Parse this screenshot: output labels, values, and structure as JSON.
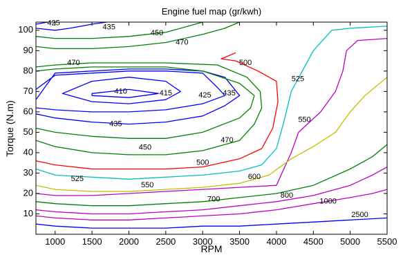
{
  "chart_data": {
    "type": "contour",
    "title": "Engine fuel map (gr/kwh)",
    "xlabel": "RPM",
    "ylabel": "Torque (N.m)",
    "xlim": [
      740,
      5500
    ],
    "ylim": [
      0,
      104
    ],
    "xticks": [
      1000,
      1500,
      2000,
      2500,
      3000,
      3500,
      4000,
      4500,
      5000,
      5500
    ],
    "yticks": [
      10,
      20,
      30,
      40,
      50,
      60,
      70,
      80,
      90,
      100
    ],
    "grid": false,
    "colors": {
      "blue": "#0000ff",
      "green": "#008000",
      "red": "#ff0000",
      "cyan": "#00bfbf",
      "magenta": "#bf00bf",
      "olive": "#bfbf00"
    },
    "contours": [
      {
        "level": 410,
        "label": "410",
        "color": "blue",
        "closed": true,
        "points": [
          [
            1500,
            69
          ],
          [
            2000,
            71
          ],
          [
            2400,
            69
          ],
          [
            2000,
            67
          ],
          [
            1500,
            68
          ]
        ]
      },
      {
        "level": 415,
        "label": "415",
        "color": "blue",
        "closed": true,
        "points": [
          [
            1100,
            69
          ],
          [
            1500,
            75
          ],
          [
            2000,
            77
          ],
          [
            2500,
            75
          ],
          [
            2700,
            70
          ],
          [
            2500,
            66
          ],
          [
            2000,
            64
          ],
          [
            1500,
            65
          ]
        ]
      },
      {
        "level": 425,
        "label": "425",
        "color": "blue",
        "closed": false,
        "points": [
          [
            740,
            71
          ],
          [
            1000,
            78
          ],
          [
            1500,
            79
          ],
          [
            2000,
            80
          ],
          [
            2500,
            80
          ],
          [
            3000,
            79
          ],
          [
            3200,
            72
          ],
          [
            3300,
            68
          ],
          [
            3000,
            64
          ],
          [
            2500,
            61
          ],
          [
            2000,
            60
          ],
          [
            1500,
            60
          ],
          [
            1000,
            61
          ],
          [
            740,
            62
          ]
        ]
      },
      {
        "level": 435,
        "label": "435",
        "color": "blue",
        "closed": false,
        "points": [
          [
            740,
            66
          ],
          [
            1000,
            79
          ],
          [
            1500,
            80
          ],
          [
            2000,
            81
          ],
          [
            2500,
            81
          ],
          [
            3000,
            80
          ],
          [
            3300,
            77
          ],
          [
            3500,
            68
          ],
          [
            3300,
            63
          ],
          [
            3000,
            58
          ],
          [
            2500,
            55
          ],
          [
            2000,
            54
          ],
          [
            1500,
            55
          ],
          [
            1000,
            57
          ],
          [
            740,
            59
          ]
        ]
      },
      {
        "level": 435,
        "label": "435",
        "color": "blue",
        "closed": false,
        "points": [
          [
            1700,
            104
          ],
          [
            1500,
            103
          ],
          [
            1200,
            101
          ],
          [
            1000,
            100
          ],
          [
            740,
            101
          ]
        ]
      },
      {
        "level": 425,
        "label": "425",
        "color": "blue",
        "closed": false,
        "points": [
          [
            740,
            103
          ],
          [
            900,
            104
          ]
        ]
      },
      {
        "level": 450,
        "label": "450",
        "color": "green",
        "closed": false,
        "points": [
          [
            740,
            97
          ],
          [
            1000,
            96
          ],
          [
            1500,
            96
          ],
          [
            2000,
            97
          ],
          [
            2500,
            99
          ],
          [
            2900,
            103
          ],
          [
            3000,
            104
          ]
        ]
      },
      {
        "level": 450,
        "label": "450",
        "color": "green",
        "closed": false,
        "points": [
          [
            740,
            52
          ],
          [
            1000,
            50
          ],
          [
            1500,
            48
          ],
          [
            2000,
            47
          ],
          [
            2500,
            47
          ],
          [
            3000,
            50
          ],
          [
            3500,
            57
          ],
          [
            3650,
            62
          ],
          [
            3700,
            68
          ],
          [
            3500,
            74
          ],
          [
            3000,
            80
          ],
          [
            2500,
            82
          ],
          [
            2000,
            82
          ],
          [
            1500,
            82
          ],
          [
            1000,
            81
          ],
          [
            740,
            80
          ]
        ]
      },
      {
        "level": 470,
        "label": "470",
        "color": "green",
        "closed": false,
        "points": [
          [
            740,
            92
          ],
          [
            1000,
            91
          ],
          [
            1500,
            91
          ],
          [
            2000,
            92
          ],
          [
            2500,
            94
          ],
          [
            3000,
            98
          ],
          [
            3300,
            101
          ],
          [
            3500,
            104
          ]
        ]
      },
      {
        "level": 470,
        "label": "470",
        "color": "green",
        "closed": false,
        "points": [
          [
            740,
            46
          ],
          [
            1000,
            43
          ],
          [
            1500,
            40
          ],
          [
            2000,
            39
          ],
          [
            2500,
            39
          ],
          [
            3000,
            41
          ],
          [
            3500,
            46
          ],
          [
            3700,
            54
          ],
          [
            3800,
            62
          ],
          [
            3780,
            70
          ],
          [
            3600,
            77
          ],
          [
            3200,
            83
          ],
          [
            2500,
            84
          ],
          [
            2000,
            84
          ],
          [
            1500,
            84
          ],
          [
            1000,
            83
          ],
          [
            740,
            82
          ]
        ]
      },
      {
        "level": 500,
        "label": "500",
        "color": "red",
        "closed": false,
        "points": [
          [
            740,
            36
          ],
          [
            1000,
            34
          ],
          [
            1500,
            32
          ],
          [
            2000,
            32
          ],
          [
            2500,
            32
          ],
          [
            3000,
            33
          ],
          [
            3500,
            37
          ],
          [
            3800,
            42
          ],
          [
            3950,
            52
          ],
          [
            4020,
            65
          ],
          [
            4000,
            75
          ],
          [
            3750,
            80
          ],
          [
            3450,
            85
          ],
          [
            3250,
            86
          ],
          [
            3450,
            89
          ]
        ]
      },
      {
        "level": 525,
        "label": "525",
        "color": "cyan",
        "closed": false,
        "points": [
          [
            740,
            32
          ],
          [
            1000,
            29
          ],
          [
            1500,
            28
          ],
          [
            2000,
            27
          ],
          [
            2500,
            28
          ],
          [
            3000,
            29
          ],
          [
            3500,
            31
          ],
          [
            3800,
            34
          ],
          [
            4000,
            42
          ],
          [
            4100,
            55
          ],
          [
            4200,
            70
          ],
          [
            4350,
            80
          ],
          [
            4500,
            90
          ],
          [
            4750,
            100
          ],
          [
            5000,
            101
          ],
          [
            5500,
            102
          ]
        ]
      },
      {
        "level": 550,
        "label": "550",
        "color": "magenta",
        "closed": false,
        "points": [
          [
            740,
            20
          ],
          [
            1000,
            19
          ],
          [
            1500,
            19
          ],
          [
            2000,
            20
          ],
          [
            2500,
            21
          ],
          [
            3000,
            22
          ],
          [
            3500,
            23
          ],
          [
            4000,
            24
          ],
          [
            4200,
            40
          ],
          [
            4300,
            50
          ],
          [
            4600,
            60
          ],
          [
            4800,
            70
          ],
          [
            4900,
            80
          ],
          [
            4950,
            90
          ],
          [
            5100,
            95
          ],
          [
            5500,
            96
          ]
        ]
      },
      {
        "level": 600,
        "label": "600",
        "color": "olive",
        "closed": false,
        "points": [
          [
            740,
            24
          ],
          [
            1000,
            22
          ],
          [
            1500,
            21
          ],
          [
            2000,
            21
          ],
          [
            2500,
            22
          ],
          [
            3000,
            23
          ],
          [
            3500,
            25
          ],
          [
            3900,
            29
          ],
          [
            4200,
            37
          ],
          [
            4500,
            43
          ],
          [
            4800,
            50
          ],
          [
            5000,
            60
          ],
          [
            5200,
            68
          ],
          [
            5500,
            77
          ]
        ]
      },
      {
        "level": 700,
        "label": "700",
        "color": "green",
        "closed": false,
        "points": [
          [
            740,
            16
          ],
          [
            1000,
            15
          ],
          [
            1500,
            14
          ],
          [
            2000,
            14
          ],
          [
            2500,
            15
          ],
          [
            3000,
            16
          ],
          [
            3500,
            18
          ],
          [
            4000,
            20
          ],
          [
            4500,
            24
          ],
          [
            5000,
            32
          ],
          [
            5300,
            38
          ],
          [
            5500,
            44
          ]
        ]
      },
      {
        "level": 800,
        "label": "800",
        "color": "magenta",
        "closed": false,
        "points": [
          [
            740,
            12
          ],
          [
            1000,
            11
          ],
          [
            1500,
            10
          ],
          [
            2000,
            10
          ],
          [
            2500,
            11
          ],
          [
            3000,
            12
          ],
          [
            3500,
            14
          ],
          [
            4000,
            16
          ],
          [
            4500,
            19
          ],
          [
            5000,
            24
          ],
          [
            5300,
            29
          ],
          [
            5500,
            33
          ]
        ]
      },
      {
        "level": 1000,
        "label": "1000",
        "color": "magenta",
        "closed": false,
        "points": [
          [
            740,
            9
          ],
          [
            1000,
            8
          ],
          [
            1500,
            7
          ],
          [
            2000,
            7
          ],
          [
            2500,
            8
          ],
          [
            3000,
            9
          ],
          [
            3500,
            10
          ],
          [
            4000,
            12
          ],
          [
            4500,
            15
          ],
          [
            5000,
            18
          ],
          [
            5300,
            20
          ],
          [
            5500,
            22
          ]
        ]
      },
      {
        "level": 2500,
        "label": "2500",
        "color": "blue",
        "closed": false,
        "points": [
          [
            740,
            5
          ],
          [
            1000,
            4
          ],
          [
            1500,
            3
          ],
          [
            2000,
            3
          ],
          [
            2500,
            3
          ],
          [
            3000,
            4
          ],
          [
            3500,
            4
          ],
          [
            4000,
            5
          ],
          [
            4500,
            6
          ],
          [
            5000,
            7
          ],
          [
            5500,
            8
          ]
        ]
      }
    ],
    "labels": [
      {
        "text": "425",
        "x": 980,
        "y": 103.5
      },
      {
        "text": "435",
        "x": 1730,
        "y": 101.5
      },
      {
        "text": "450",
        "x": 2380,
        "y": 98.5
      },
      {
        "text": "470",
        "x": 2720,
        "y": 94
      },
      {
        "text": "470",
        "x": 1250,
        "y": 84
      },
      {
        "text": "500",
        "x": 3580,
        "y": 84
      },
      {
        "text": "525",
        "x": 4290,
        "y": 76
      },
      {
        "text": "410",
        "x": 1890,
        "y": 70
      },
      {
        "text": "415",
        "x": 2500,
        "y": 69
      },
      {
        "text": "425",
        "x": 3030,
        "y": 68
      },
      {
        "text": "435",
        "x": 3360,
        "y": 69
      },
      {
        "text": "550",
        "x": 4380,
        "y": 56
      },
      {
        "text": "435",
        "x": 1820,
        "y": 54
      },
      {
        "text": "470",
        "x": 3330,
        "y": 46
      },
      {
        "text": "450",
        "x": 2220,
        "y": 42.5
      },
      {
        "text": "500",
        "x": 3000,
        "y": 35
      },
      {
        "text": "600",
        "x": 3700,
        "y": 28
      },
      {
        "text": "525",
        "x": 1300,
        "y": 27
      },
      {
        "text": "550",
        "x": 2250,
        "y": 24
      },
      {
        "text": "700",
        "x": 3150,
        "y": 17
      },
      {
        "text": "800",
        "x": 4140,
        "y": 19
      },
      {
        "text": "1000",
        "x": 4700,
        "y": 16
      },
      {
        "text": "2500",
        "x": 5130,
        "y": 9.5
      }
    ]
  }
}
